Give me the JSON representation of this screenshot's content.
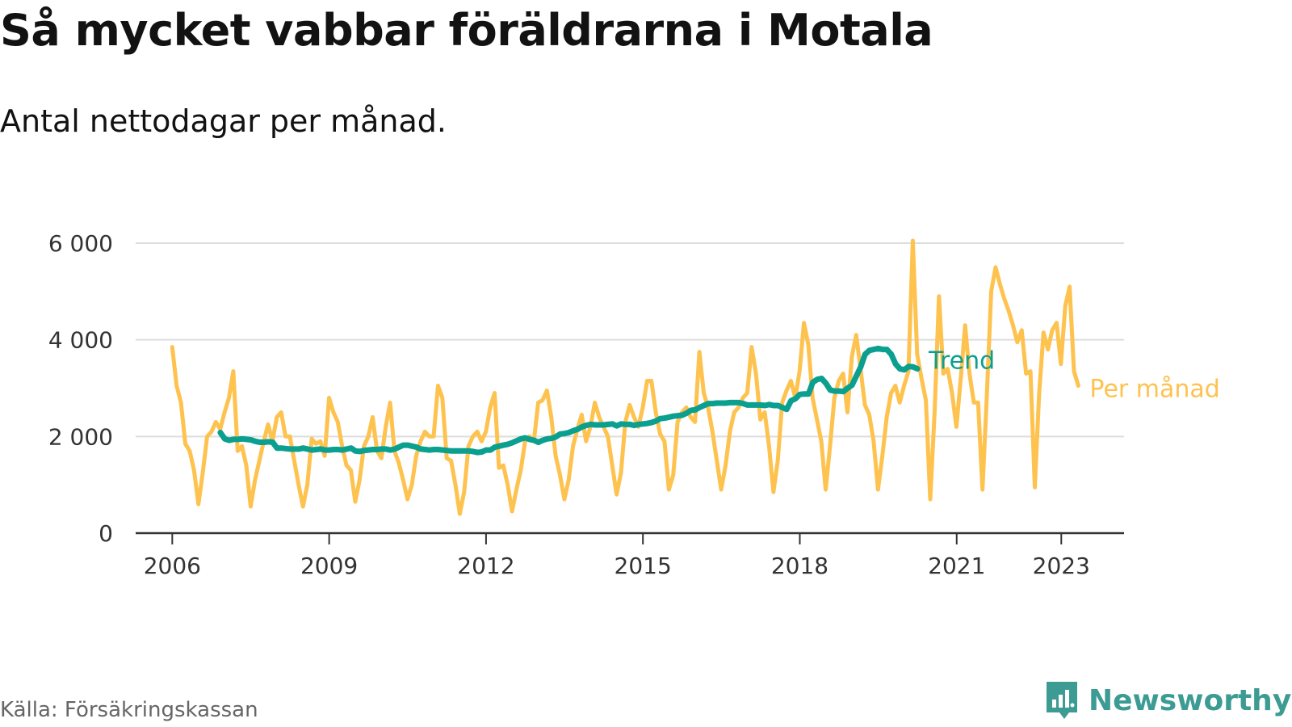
{
  "title": "Så mycket vabbar föräldrarna i Motala",
  "subtitle": "Antal nettodagar per månad.",
  "source": "Källa: Försäkringskassan",
  "brand": {
    "name": "Newsworthy",
    "icon": "newsworthy-logo-icon",
    "color": "#3c9c93"
  },
  "chart_data": {
    "type": "line",
    "x_tick_labels": [
      "2006",
      "2009",
      "2012",
      "2015",
      "2018",
      "2021",
      "2023"
    ],
    "x_tick_values": [
      2006,
      2009,
      2012,
      2015,
      2018,
      2021,
      2023
    ],
    "xlim": [
      2005.3,
      2024.2
    ],
    "ylim": [
      0,
      6000
    ],
    "y_tick_values": [
      0,
      2000,
      4000,
      6000
    ],
    "y_tick_labels": [
      "0",
      "2 000",
      "4 000",
      "6 000"
    ],
    "grid": true,
    "legend": "end-of-line labels",
    "series": [
      {
        "name": "Per månad",
        "color": "#fec24f",
        "x_start": 2006.0,
        "step": 0.0833,
        "values": [
          3850,
          3050,
          2700,
          1850,
          1700,
          1300,
          600,
          1250,
          2000,
          2100,
          2300,
          2150,
          2500,
          2800,
          3350,
          1700,
          1800,
          1400,
          550,
          1100,
          1500,
          1900,
          2250,
          1900,
          2400,
          2500,
          2000,
          2000,
          1500,
          1000,
          550,
          1000,
          1950,
          1850,
          1900,
          1600,
          2800,
          2500,
          2300,
          1800,
          1400,
          1300,
          650,
          1100,
          1800,
          2000,
          2400,
          1700,
          1550,
          2200,
          2700,
          1700,
          1450,
          1100,
          700,
          1000,
          1600,
          1900,
          2100,
          2000,
          2000,
          3050,
          2800,
          1550,
          1500,
          1000,
          400,
          850,
          1800,
          2000,
          2100,
          1900,
          2100,
          2600,
          2900,
          1350,
          1400,
          1000,
          450,
          900,
          1300,
          1900,
          2000,
          1900,
          2700,
          2750,
          2950,
          2400,
          1600,
          1200,
          700,
          1100,
          1800,
          2150,
          2450,
          1900,
          2200,
          2700,
          2400,
          2200,
          2000,
          1400,
          800,
          1250,
          2300,
          2650,
          2400,
          2200,
          2600,
          3150,
          3150,
          2500,
          2050,
          1900,
          900,
          1200,
          2300,
          2500,
          2600,
          2400,
          2300,
          3750,
          2900,
          2600,
          2100,
          1500,
          900,
          1400,
          2100,
          2500,
          2600,
          2800,
          2900,
          3850,
          3300,
          2350,
          2500,
          1800,
          850,
          1500,
          2700,
          2950,
          3150,
          2800,
          3350,
          4350,
          3900,
          2800,
          2350,
          1900,
          900,
          1800,
          2800,
          3150,
          3300,
          2500,
          3650,
          4100,
          3400,
          2650,
          2450,
          1900,
          900,
          1600,
          2400,
          2900,
          3050,
          2700,
          3050,
          3350,
          6050,
          3700,
          3200,
          2750,
          700,
          2500,
          4900,
          3300,
          3400,
          2900,
          2200,
          3200,
          4300,
          3300,
          2700,
          2700,
          900,
          2850,
          5000,
          5500,
          5150,
          4850,
          4600,
          4300,
          3950,
          4200,
          3300,
          3350,
          950,
          2900,
          4150,
          3800,
          4200,
          4350,
          3500,
          4700,
          5100,
          3350,
          3050
        ]
      },
      {
        "name": "Trend",
        "color": "#0a9f8f",
        "x_start": 2006.92,
        "step": 0.0833,
        "values": [
          2080,
          1950,
          1920,
          1940,
          1940,
          1950,
          1940,
          1930,
          1900,
          1880,
          1880,
          1890,
          1880,
          1760,
          1760,
          1750,
          1740,
          1740,
          1740,
          1760,
          1740,
          1720,
          1730,
          1740,
          1720,
          1720,
          1730,
          1730,
          1720,
          1740,
          1760,
          1700,
          1690,
          1710,
          1720,
          1730,
          1730,
          1740,
          1740,
          1720,
          1740,
          1780,
          1820,
          1820,
          1800,
          1780,
          1740,
          1730,
          1720,
          1730,
          1730,
          1720,
          1710,
          1700,
          1700,
          1700,
          1700,
          1700,
          1690,
          1670,
          1680,
          1720,
          1720,
          1780,
          1800,
          1820,
          1840,
          1870,
          1910,
          1950,
          1970,
          1940,
          1920,
          1880,
          1920,
          1950,
          1960,
          1990,
          2050,
          2060,
          2080,
          2120,
          2150,
          2200,
          2230,
          2250,
          2240,
          2240,
          2240,
          2250,
          2260,
          2220,
          2260,
          2250,
          2250,
          2230,
          2250,
          2260,
          2270,
          2290,
          2320,
          2370,
          2380,
          2400,
          2420,
          2430,
          2440,
          2480,
          2540,
          2550,
          2600,
          2640,
          2680,
          2680,
          2690,
          2690,
          2690,
          2700,
          2700,
          2700,
          2680,
          2650,
          2650,
          2650,
          2650,
          2640,
          2660,
          2640,
          2640,
          2600,
          2560,
          2740,
          2780,
          2870,
          2880,
          2880,
          3120,
          3180,
          3200,
          3100,
          2960,
          2940,
          2940,
          2930,
          3000,
          3060,
          3250,
          3440,
          3700,
          3780,
          3800,
          3820,
          3800,
          3800,
          3700,
          3500,
          3400,
          3380,
          3450,
          3440,
          3400
        ]
      }
    ]
  }
}
